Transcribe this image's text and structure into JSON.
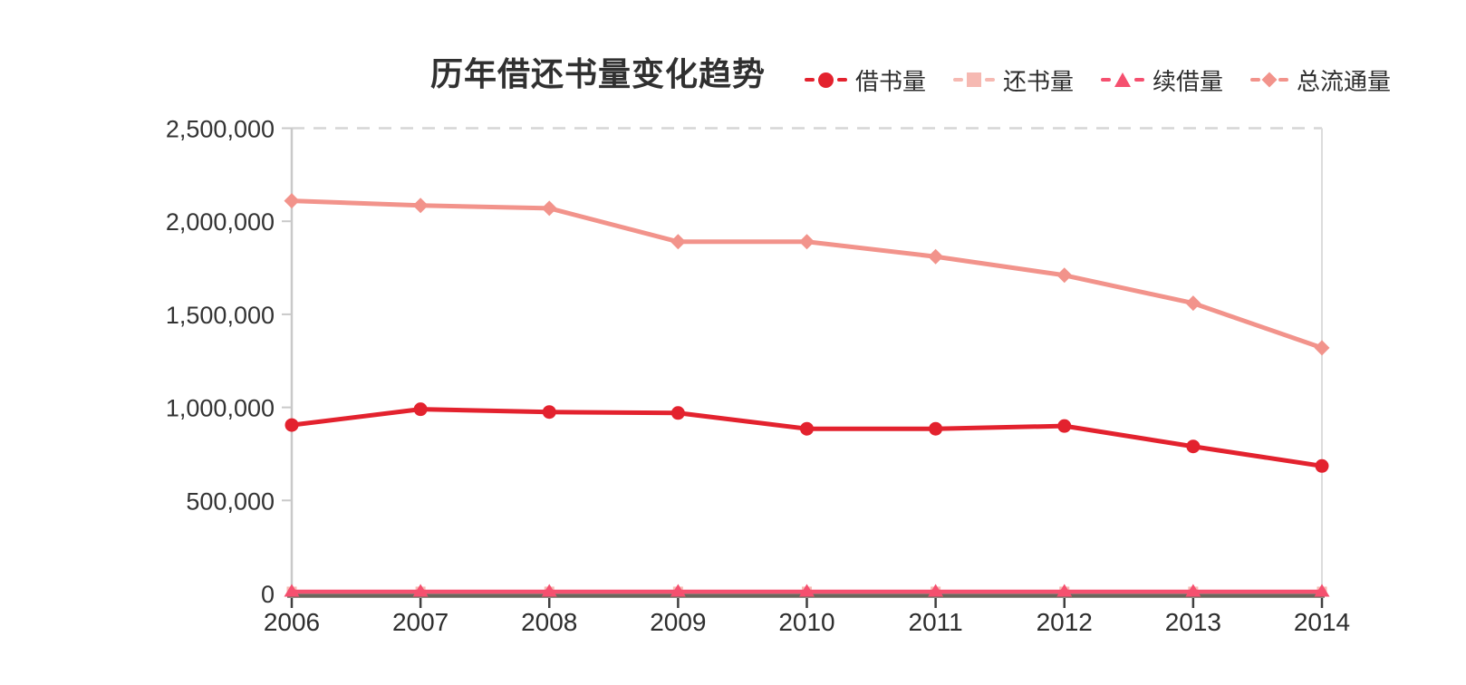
{
  "title": "历年借还书量变化趋势",
  "chart_data": {
    "type": "line",
    "categories": [
      "2006",
      "2007",
      "2008",
      "2009",
      "2010",
      "2011",
      "2012",
      "2013",
      "2014"
    ],
    "series": [
      {
        "key": "borrow",
        "name": "借书量",
        "marker": "circle",
        "color": "#E3222E",
        "values": [
          905000,
          990000,
          975000,
          970000,
          885000,
          885000,
          900000,
          790000,
          685000
        ]
      },
      {
        "key": "return",
        "name": "还书量",
        "marker": "square",
        "color": "#F6B9B2",
        "values": [
          10000,
          10000,
          10000,
          10000,
          10000,
          10000,
          10000,
          10000,
          10000
        ]
      },
      {
        "key": "renew",
        "name": "续借量",
        "marker": "triangle",
        "color": "#F5506F",
        "values": [
          10000,
          10000,
          10000,
          10000,
          10000,
          10000,
          10000,
          10000,
          10000
        ]
      },
      {
        "key": "total",
        "name": "总流通量",
        "marker": "diamond",
        "color": "#F2938B",
        "values": [
          2110000,
          2085000,
          2070000,
          1890000,
          1890000,
          1810000,
          1710000,
          1560000,
          1320000
        ]
      }
    ],
    "ylim": [
      0,
      2500000
    ],
    "y_ticks": [
      "0",
      "500,000",
      "1,000,000",
      "1,500,000",
      "2,000,000",
      "2,500,000"
    ],
    "grid": "single dashed gridline at 2,500,000 only",
    "legend_position": "top-right"
  }
}
